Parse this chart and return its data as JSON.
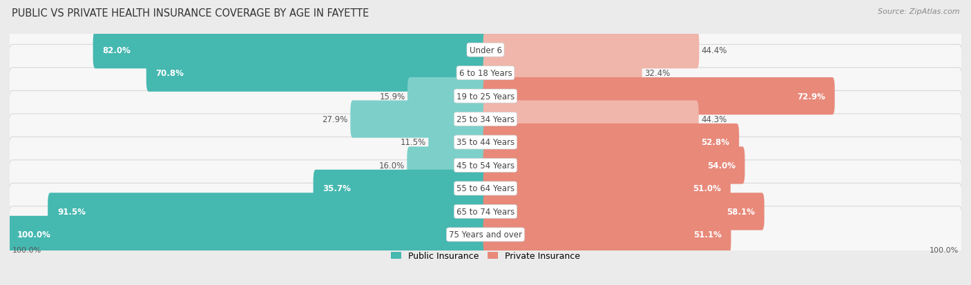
{
  "title": "PUBLIC VS PRIVATE HEALTH INSURANCE COVERAGE BY AGE IN FAYETTE",
  "source": "Source: ZipAtlas.com",
  "categories": [
    "Under 6",
    "6 to 18 Years",
    "19 to 25 Years",
    "25 to 34 Years",
    "35 to 44 Years",
    "45 to 54 Years",
    "55 to 64 Years",
    "65 to 74 Years",
    "75 Years and over"
  ],
  "public_values": [
    82.0,
    70.8,
    15.9,
    27.9,
    11.5,
    16.0,
    35.7,
    91.5,
    100.0
  ],
  "private_values": [
    44.4,
    32.4,
    72.9,
    44.3,
    52.8,
    54.0,
    51.0,
    58.1,
    51.1
  ],
  "public_color": "#45b8b0",
  "private_color": "#e8897a",
  "public_color_light": "#7dd0ca",
  "private_color_light": "#f0b5ab",
  "background_color": "#ebebeb",
  "row_bg_color": "#f7f7f7",
  "row_border_color": "#d8d8d8",
  "max_value": 100.0,
  "title_fontsize": 10.5,
  "label_fontsize": 8.5,
  "value_fontsize": 8.5,
  "legend_fontsize": 9,
  "source_fontsize": 8,
  "axis_label_fontsize": 8
}
